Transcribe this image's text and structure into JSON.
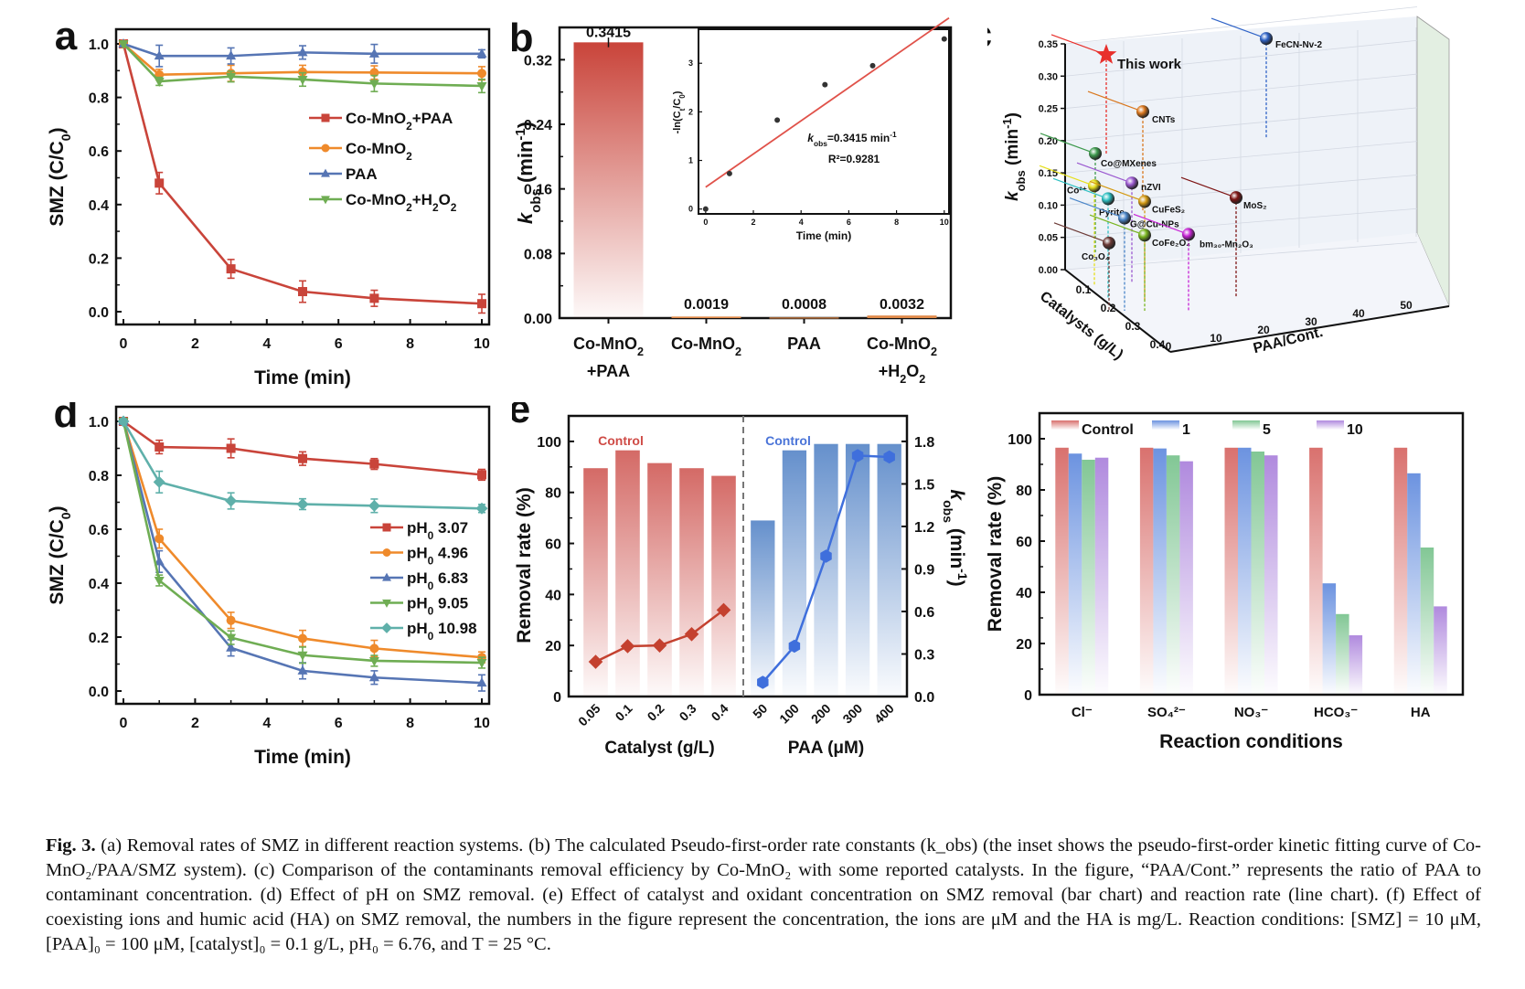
{
  "panels": {
    "a": {
      "label": "a",
      "chart_data": {
        "type": "line",
        "xlabel": "Time (min)",
        "ylabel": "SMZ (C/C0)",
        "xlim": [
          0,
          10
        ],
        "ylim": [
          0,
          1.0
        ],
        "xticks": [
          "0",
          "2",
          "4",
          "6",
          "8",
          "10"
        ],
        "yticks": [
          "0.0",
          "0.2",
          "0.4",
          "0.6",
          "0.8",
          "1.0"
        ],
        "x": [
          0,
          1,
          3,
          5,
          7,
          10
        ],
        "series": [
          {
            "name": "Co-MnO2+PAA",
            "color": "#c9443a",
            "marker": "square",
            "values": [
              1.0,
              0.48,
              0.16,
              0.075,
              0.05,
              0.03
            ],
            "err": [
              0,
              0.04,
              0.035,
              0.04,
              0.03,
              0.035
            ]
          },
          {
            "name": "Co-MnO2",
            "color": "#ef8a2b",
            "marker": "circle",
            "values": [
              1.0,
              0.885,
              0.89,
              0.895,
              0.893,
              0.89
            ],
            "err": [
              0,
              0.02,
              0.03,
              0.025,
              0.025,
              0.025
            ]
          },
          {
            "name": "PAA",
            "color": "#5675b4",
            "marker": "triangle-up",
            "values": [
              1.0,
              0.955,
              0.955,
              0.968,
              0.963,
              0.963
            ],
            "err": [
              0,
              0.04,
              0.03,
              0.025,
              0.035,
              0.015
            ]
          },
          {
            "name": "Co-MnO2+H2O2",
            "color": "#6fad53",
            "marker": "triangle-down",
            "values": [
              1.0,
              0.86,
              0.878,
              0.867,
              0.852,
              0.843
            ],
            "err": [
              0,
              0.015,
              0.02,
              0.025,
              0.03,
              0.025
            ]
          }
        ],
        "legend": [
          "Co-MnO₂+PAA",
          "Co-MnO₂",
          "PAA",
          "Co-MnO₂+H₂O₂"
        ],
        "legend_position": "center-right"
      }
    },
    "b": {
      "label": "b",
      "chart_data": {
        "type": "bar",
        "ylabel": "kobs (min-1)",
        "ylim": [
          0,
          0.36
        ],
        "yticks": [
          "0.00",
          "0.08",
          "0.16",
          "0.24",
          "0.32"
        ],
        "categories": [
          [
            "Co-MnO₂",
            "+PAA"
          ],
          [
            "Co-MnO₂",
            ""
          ],
          [
            "PAA",
            ""
          ],
          [
            "Co-MnO₂",
            "+H₂O₂"
          ]
        ],
        "values": [
          0.3415,
          0.0019,
          0.0008,
          0.0032
        ],
        "value_labels": [
          "0.3415",
          "0.0019",
          "0.0008",
          "0.0032"
        ],
        "colors": [
          "#c9443a",
          "#e08a4a",
          "#e08a4a",
          "#e08a4a"
        ],
        "inset": {
          "type": "scatter",
          "xlabel": "Time (min)",
          "ylabel": "-ln(Ct/C0)",
          "xlim": [
            -0.3,
            10.2
          ],
          "ylim": [
            -0.1,
            3.7
          ],
          "xticks": [
            "0",
            "2",
            "4",
            "6",
            "8",
            "10"
          ],
          "yticks": [
            "0",
            "1",
            "2",
            "3"
          ],
          "x": [
            0,
            1,
            3,
            5,
            7,
            10
          ],
          "y": [
            0,
            0.73,
            1.83,
            2.56,
            2.95,
            3.5
          ],
          "fit": {
            "slope": 0.3415,
            "intercept": 0.45,
            "color": "#e0524a"
          },
          "annotation_k": "=0.3415 min",
          "annotation_r2": "R²=0.9281"
        }
      }
    },
    "c": {
      "label": "c",
      "chart_data": {
        "type": "scatter",
        "projection": "3d",
        "zlabel": "kobs (min-1)",
        "xlabel": "Catalysts (g/L)",
        "ylabel": "PAA/Cont.",
        "zlim": [
          0,
          0.35
        ],
        "zticks": [
          "0.00",
          "0.05",
          "0.10",
          "0.15",
          "0.20",
          "0.25",
          "0.30",
          "0.35"
        ],
        "xticks": [
          "0.1",
          "0.2",
          "0.3",
          "0.4"
        ],
        "yticks": [
          "0",
          "10",
          "20",
          "30",
          "40",
          "50"
        ],
        "points": [
          {
            "name": "This work",
            "color": "#e8302c",
            "marker": "star",
            "k": 0.3415
          },
          {
            "name": "FeCN-Nv-2",
            "color": "#2f63c7",
            "marker": "sphere",
            "k": 0.33
          },
          {
            "name": "CNTs",
            "color": "#d9761c",
            "marker": "sphere",
            "k": 0.245
          },
          {
            "name": "Co@MXenes",
            "color": "#3f9a4e",
            "marker": "sphere",
            "k": 0.18
          },
          {
            "name": "nZVI",
            "color": "#9b59d0",
            "marker": "sphere",
            "k": 0.14
          },
          {
            "name": "Co²⁺",
            "color": "#e6df1c",
            "marker": "sphere",
            "k": 0.13
          },
          {
            "name": "Pyrite",
            "color": "#2ebfc2",
            "marker": "sphere",
            "k": 0.11
          },
          {
            "name": "CuFeS₂",
            "color": "#d49a12",
            "marker": "sphere",
            "k": 0.1
          },
          {
            "name": "G@Cu-NPs",
            "color": "#4b86c9",
            "marker": "sphere",
            "k": 0.08
          },
          {
            "name": "CoFe₂O₄",
            "color": "#79b520",
            "marker": "sphere",
            "k": 0.045
          },
          {
            "name": "Co₃O₄",
            "color": "#6d3b37",
            "marker": "sphere",
            "k": 0.03
          },
          {
            "name": "MoS₂",
            "color": "#7d1414",
            "marker": "sphere",
            "k": 0.055
          },
          {
            "name": "bm₃₀-Mn₂O₃",
            "color": "#c724d6",
            "marker": "sphere",
            "k": 0.015
          }
        ]
      }
    },
    "d": {
      "label": "d",
      "chart_data": {
        "type": "line",
        "xlabel": "Time (min)",
        "ylabel": "SMZ (C/C0)",
        "xlim": [
          0,
          10
        ],
        "ylim": [
          0,
          1.0
        ],
        "xticks": [
          "0",
          "2",
          "4",
          "6",
          "8",
          "10"
        ],
        "yticks": [
          "0.0",
          "0.2",
          "0.4",
          "0.6",
          "0.8",
          "1.0"
        ],
        "x": [
          0,
          1,
          3,
          5,
          7,
          10
        ],
        "series": [
          {
            "name": "pH0 3.07",
            "color": "#c9443a",
            "marker": "square",
            "values": [
              1.0,
              0.905,
              0.9,
              0.862,
              0.842,
              0.802
            ],
            "err": [
              0,
              0.025,
              0.035,
              0.025,
              0.02,
              0.02
            ]
          },
          {
            "name": "pH0 4.96",
            "color": "#ef8a2b",
            "marker": "circle",
            "values": [
              1.0,
              0.565,
              0.262,
              0.195,
              0.158,
              0.125
            ],
            "err": [
              0,
              0.035,
              0.03,
              0.03,
              0.03,
              0.02
            ]
          },
          {
            "name": "pH0 6.83",
            "color": "#5675b4",
            "marker": "triangle-up",
            "values": [
              1.0,
              0.48,
              0.16,
              0.075,
              0.05,
              0.03
            ],
            "err": [
              0,
              0.04,
              0.03,
              0.03,
              0.025,
              0.03
            ]
          },
          {
            "name": "pH0 9.05",
            "color": "#6fad53",
            "marker": "triangle-down",
            "values": [
              1.0,
              0.41,
              0.198,
              0.133,
              0.112,
              0.105
            ],
            "err": [
              0,
              0.02,
              0.025,
              0.03,
              0.02,
              0.02
            ]
          },
          {
            "name": "pH0 10.98",
            "color": "#5fb0aa",
            "marker": "diamond",
            "values": [
              1.0,
              0.775,
              0.705,
              0.693,
              0.687,
              0.677
            ],
            "err": [
              0,
              0.04,
              0.03,
              0.02,
              0.025,
              0.015
            ]
          }
        ],
        "legend": [
          "3.07",
          "4.96",
          "6.83",
          "9.05",
          "10.98"
        ],
        "legend_prefix": "pH",
        "legend_sub": "0",
        "legend_position": "right"
      }
    },
    "e": {
      "label": "e",
      "chart_data": {
        "type": "bar",
        "ylabel": "Removal rate (%)",
        "ylabel_right": "kobs (min-1)",
        "ylim": [
          0,
          110
        ],
        "ylim_right": [
          0,
          1.98
        ],
        "yticks": [
          "0",
          "20",
          "40",
          "60",
          "80",
          "100"
        ],
        "yticks_right": [
          "0.0",
          "0.3",
          "0.6",
          "0.9",
          "1.2",
          "1.5",
          "1.8"
        ],
        "groups": [
          {
            "xlabel": "Catalyst (g/L)",
            "categories": [
              "0.05",
              "0.1",
              "0.2",
              "0.3",
              "0.4"
            ],
            "bar_values": [
              89.5,
              96.5,
              91.5,
              89.5,
              86.5
            ],
            "line_values": [
              0.245,
              0.355,
              0.36,
              0.44,
              0.61
            ],
            "color": "#d46a66",
            "line_color": "#c4412f",
            "marker": "diamond",
            "annotation": "Control",
            "annotation_color": "#cf4b46"
          },
          {
            "xlabel": "PAA (μM)",
            "categories": [
              "50",
              "100",
              "200",
              "300",
              "400"
            ],
            "bar_values": [
              69,
              96.5,
              99,
              99,
              99
            ],
            "line_values": [
              0.1,
              0.355,
              0.99,
              1.7,
              1.69
            ],
            "color": "#6590cc",
            "line_color": "#3f6fdc",
            "marker": "hexagon",
            "annotation": "Control",
            "annotation_color": "#4a74d8"
          }
        ]
      }
    },
    "f": {
      "label": "f",
      "chart_data": {
        "type": "bar",
        "xlabel": "Reaction conditions",
        "ylabel": "Removal rate (%)",
        "ylim": [
          0,
          110
        ],
        "yticks": [
          "0",
          "20",
          "40",
          "60",
          "80",
          "100"
        ],
        "categories": [
          "Cl⁻",
          "SO₄²⁻",
          "NO₃⁻",
          "HCO₃⁻",
          "HA"
        ],
        "series": [
          {
            "name": "Control",
            "color": "#d9716e",
            "values": [
              96.5,
              96.5,
              96.5,
              96.5,
              96.5
            ]
          },
          {
            "name": "1",
            "color": "#6c93e0",
            "values": [
              94.2,
              96.2,
              96.5,
              43.5,
              86.5
            ]
          },
          {
            "name": "5",
            "color": "#82c795",
            "values": [
              91.8,
              93.5,
              95,
              31.5,
              57.5
            ]
          },
          {
            "name": "10",
            "color": "#b08ade",
            "values": [
              92.6,
              91.2,
              93.5,
              23.2,
              34.5
            ]
          }
        ],
        "legend_position": "top"
      }
    }
  },
  "caption": {
    "lead": "Fig. 3.",
    "text": " (a) Removal rates of SMZ in different reaction systems. (b) The calculated Pseudo-first-order rate constants (k_obs) (the inset shows the pseudo-first-order kinetic fitting curve of Co-MnO₂/PAA/SMZ system). (c) Comparison of the contaminants removal efficiency by Co-MnO₂ with some reported catalysts. In the figure, “PAA/Cont.” represents the ratio of PAA to contaminant concentration. (d) Effect of pH on SMZ removal. (e) Effect of catalyst and oxidant concentration on SMZ removal (bar chart) and reaction rate (line chart). (f) Effect of coexisting ions and humic acid (HA) on SMZ removal, the numbers in the figure represent the concentration, the ions are μM and the HA is mg/L. Reaction conditions: [SMZ] = 10 μM, [PAA]₀ = 100 μM, [catalyst]₀ = 0.1 g/L, pH₀ = 6.76, and T = 25 °C."
  }
}
